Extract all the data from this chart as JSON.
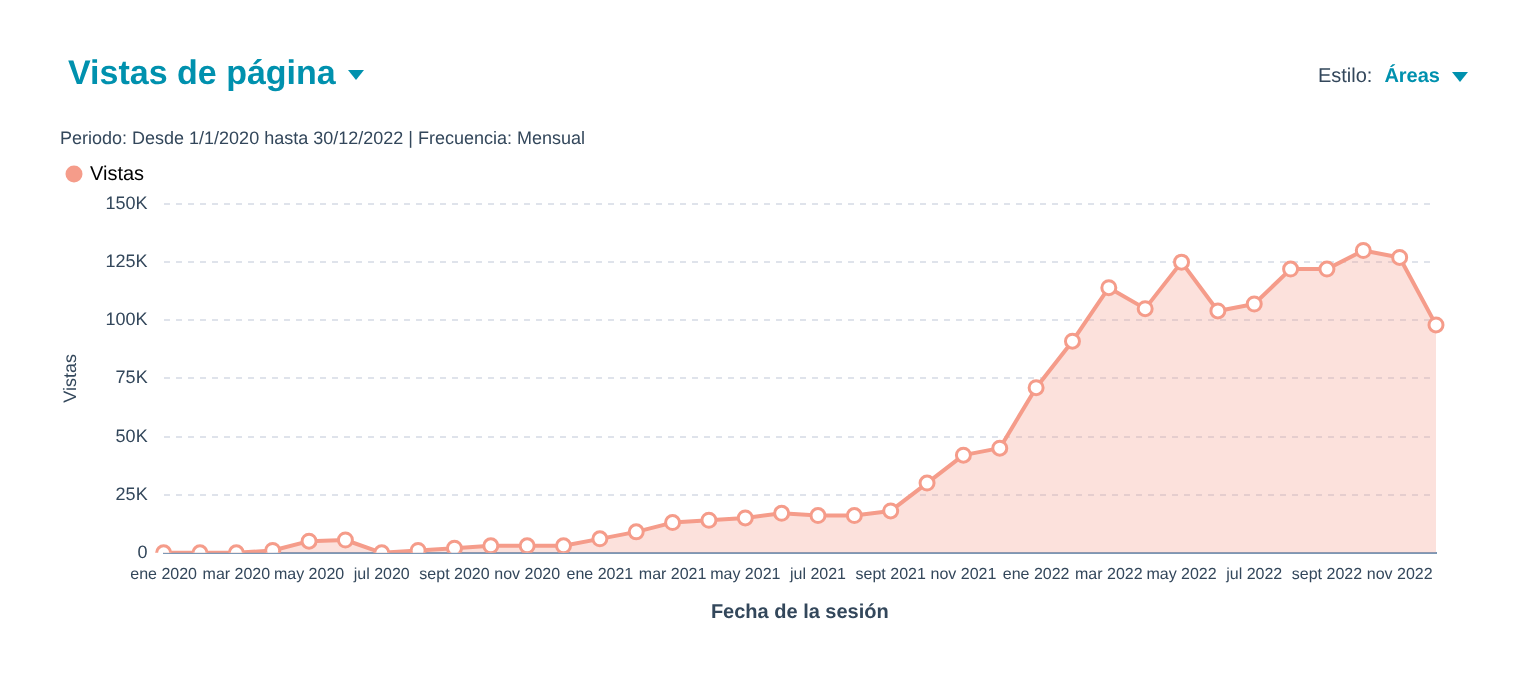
{
  "chart_data": {
    "type": "area",
    "title": "Vistas de página",
    "subtitle": "Periodo:  Desde 1/1/2020 hasta 30/12/2022 | Frecuencia: Mensual",
    "annotations": [
      "Estilo:",
      "Áreas"
    ],
    "xlabel": "Fecha de la sesión",
    "ylabel": "Vistas",
    "categories": [
      "ene 2020",
      null,
      "mar 2020",
      null,
      "may 2020",
      null,
      "jul 2020",
      null,
      "sept 2020",
      null,
      "nov 2020",
      null,
      "ene 2021",
      null,
      "mar 2021",
      null,
      "may 2021",
      null,
      "jul 2021",
      null,
      "sept 2021",
      null,
      "nov 2021",
      null,
      "ene 2022",
      null,
      "mar 2022",
      null,
      "may 2022",
      null,
      "jul 2022",
      null,
      "sept 2022",
      null,
      "nov 2022",
      null
    ],
    "series": [
      {
        "name": "Vistas",
        "color": "#f59c8a",
        "values": [
          0,
          0,
          0,
          1000,
          5000,
          5500,
          0,
          1000,
          2000,
          3000,
          3000,
          3000,
          6000,
          9000,
          13000,
          14000,
          15000,
          17000,
          16000,
          16000,
          18000,
          30000,
          42000,
          45000,
          71000,
          91000,
          114000,
          105000,
          125000,
          104000,
          107000,
          122000,
          122000,
          130000,
          127000,
          98000
        ]
      }
    ],
    "ylim": [
      0,
      150000
    ],
    "yticks": [
      0,
      {
        "value": 25000,
        "label": "25K"
      },
      {
        "value": 50000,
        "label": "50K"
      },
      {
        "value": 75000,
        "label": "75K"
      },
      {
        "value": 100000,
        "label": "100K"
      },
      {
        "value": 125000,
        "label": "125K"
      },
      {
        "value": 150000,
        "label": "150K"
      }
    ],
    "grid": "y",
    "legend": "top left",
    "marker": "circle",
    "line_style": "solid"
  }
}
